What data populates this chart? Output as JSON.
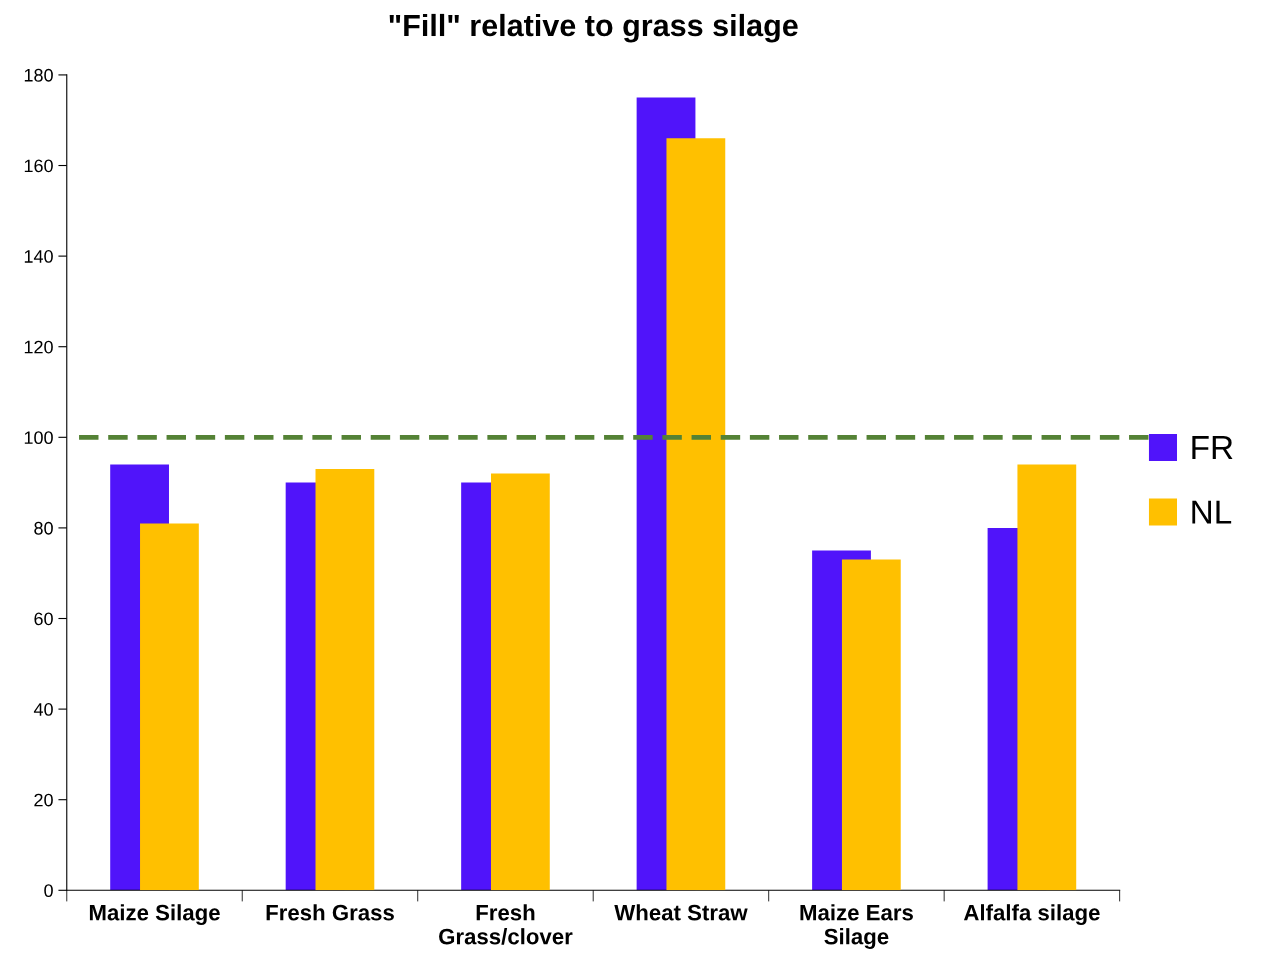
{
  "chart_data": {
    "type": "bar",
    "title": "\"Fill\" relative to grass silage",
    "categories": [
      "Maize Silage",
      "Fresh Grass",
      "Fresh\nGrass/clover",
      "Wheat Straw",
      "Maize Ears\nSilage",
      "Alfalfa silage"
    ],
    "series": [
      {
        "name": "FR",
        "color": "#5014fa",
        "values": [
          94,
          90,
          90,
          175,
          75,
          80
        ]
      },
      {
        "name": "NL",
        "color": "#ffc000",
        "values": [
          81,
          93,
          92,
          166,
          73,
          94
        ]
      }
    ],
    "ylim": [
      0,
      180
    ],
    "yticks": [
      0,
      20,
      40,
      60,
      80,
      100,
      120,
      140,
      160,
      180
    ],
    "ref_lines": [
      {
        "axis": "y",
        "value": 100,
        "label": null,
        "color": "#548235",
        "line_style": "dashed"
      }
    ],
    "grid": false,
    "legend": "right"
  }
}
